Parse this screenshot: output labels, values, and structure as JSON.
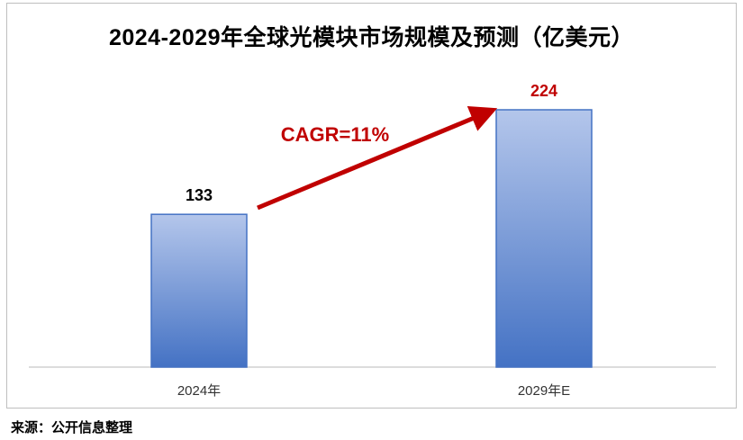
{
  "chart_data": {
    "type": "bar",
    "title": "2024-2029年全球光模块市场规模及预测（亿美元）",
    "categories": [
      "2024年",
      "2029年E"
    ],
    "values": [
      133,
      224
    ],
    "data_labels": [
      "133",
      "224"
    ],
    "xlabel": "",
    "ylabel": "",
    "grid": false,
    "legend": "none",
    "annotation": "CAGR=11%",
    "colors": {
      "bar_top": "#b4c6eb",
      "bar_bottom": "#4472c4",
      "bar_border": "#4472c4",
      "annotation": "#c00000"
    }
  },
  "source": "来源：公开信息整理"
}
